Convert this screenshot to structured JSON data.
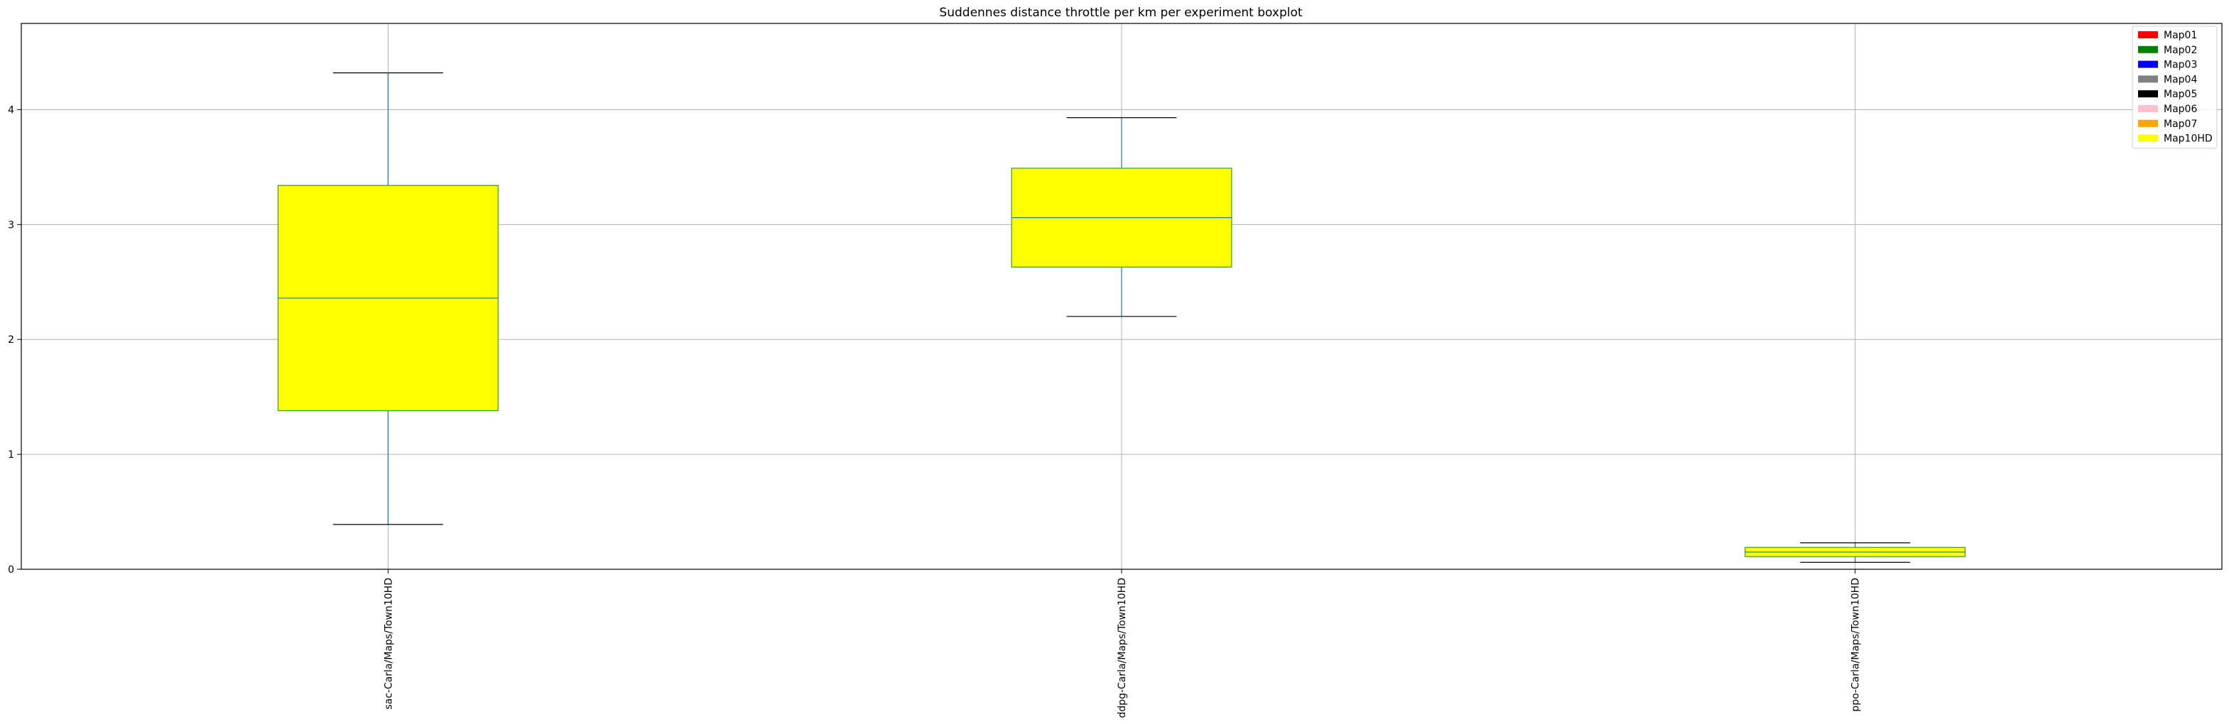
{
  "chart_data": {
    "type": "boxplot",
    "title": "Suddennes distance throttle per km per experiment boxplot",
    "xlabel": "",
    "ylabel": "",
    "ylim": [
      0,
      4.75
    ],
    "yticks": [
      0,
      1,
      2,
      3,
      4
    ],
    "grid": true,
    "legend_position": "top-right",
    "legend": [
      {
        "label": "Map01",
        "color": "#ff0000"
      },
      {
        "label": "Map02",
        "color": "#008000"
      },
      {
        "label": "Map03",
        "color": "#0000ff"
      },
      {
        "label": "Map04",
        "color": "#808080"
      },
      {
        "label": "Map05",
        "color": "#000000"
      },
      {
        "label": "Map06",
        "color": "#ffc0cb"
      },
      {
        "label": "Map07",
        "color": "#ffa500"
      },
      {
        "label": "Map10HD",
        "color": "#ffff00"
      }
    ],
    "box_fill": "#ffff00",
    "box_edge": "#2ca02c",
    "whisker_color": "#1f77b4",
    "median_color": "#1f77b4",
    "cap_color": "#000000",
    "categories": [
      "sac-Carla/Maps/Town10HD",
      "ddpg-Carla/Maps/Town10HD",
      "ppo-Carla/Maps/Town10HD"
    ],
    "boxes": [
      {
        "whislo": 0.39,
        "q1": 1.38,
        "med": 2.36,
        "q3": 3.34,
        "whishi": 4.32
      },
      {
        "whislo": 2.2,
        "q1": 2.63,
        "med": 3.06,
        "q3": 3.49,
        "whishi": 3.93
      },
      {
        "whislo": 0.06,
        "q1": 0.11,
        "med": 0.15,
        "q3": 0.19,
        "whishi": 0.23
      }
    ]
  }
}
